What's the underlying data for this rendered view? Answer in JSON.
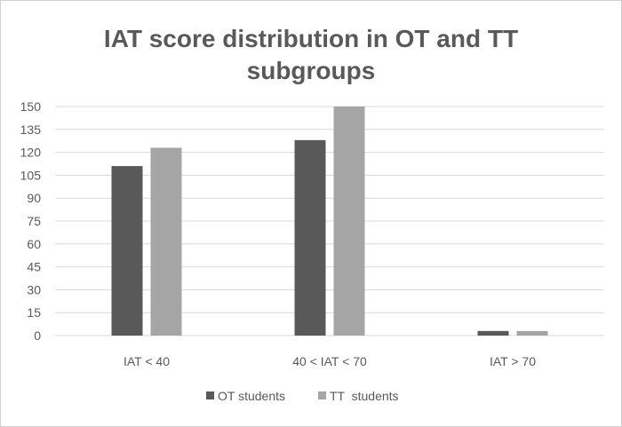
{
  "chart_data": {
    "type": "bar",
    "title_lines": [
      "IAT score distribution in OT and TT",
      "subgroups"
    ],
    "categories": [
      "IAT < 40",
      "40 < IAT < 70",
      "IAT > 70"
    ],
    "series": [
      {
        "name": "OT students",
        "values": [
          111,
          128,
          3
        ],
        "color": "#595959"
      },
      {
        "name": "TT  students",
        "values": [
          123,
          150,
          3
        ],
        "color": "#a5a5a5"
      }
    ],
    "ylim": [
      0,
      150
    ],
    "yticks": [
      0,
      15,
      30,
      45,
      60,
      75,
      90,
      105,
      120,
      135,
      150
    ],
    "grid": true,
    "legend_position": "bottom",
    "xlabel": "",
    "ylabel": ""
  }
}
